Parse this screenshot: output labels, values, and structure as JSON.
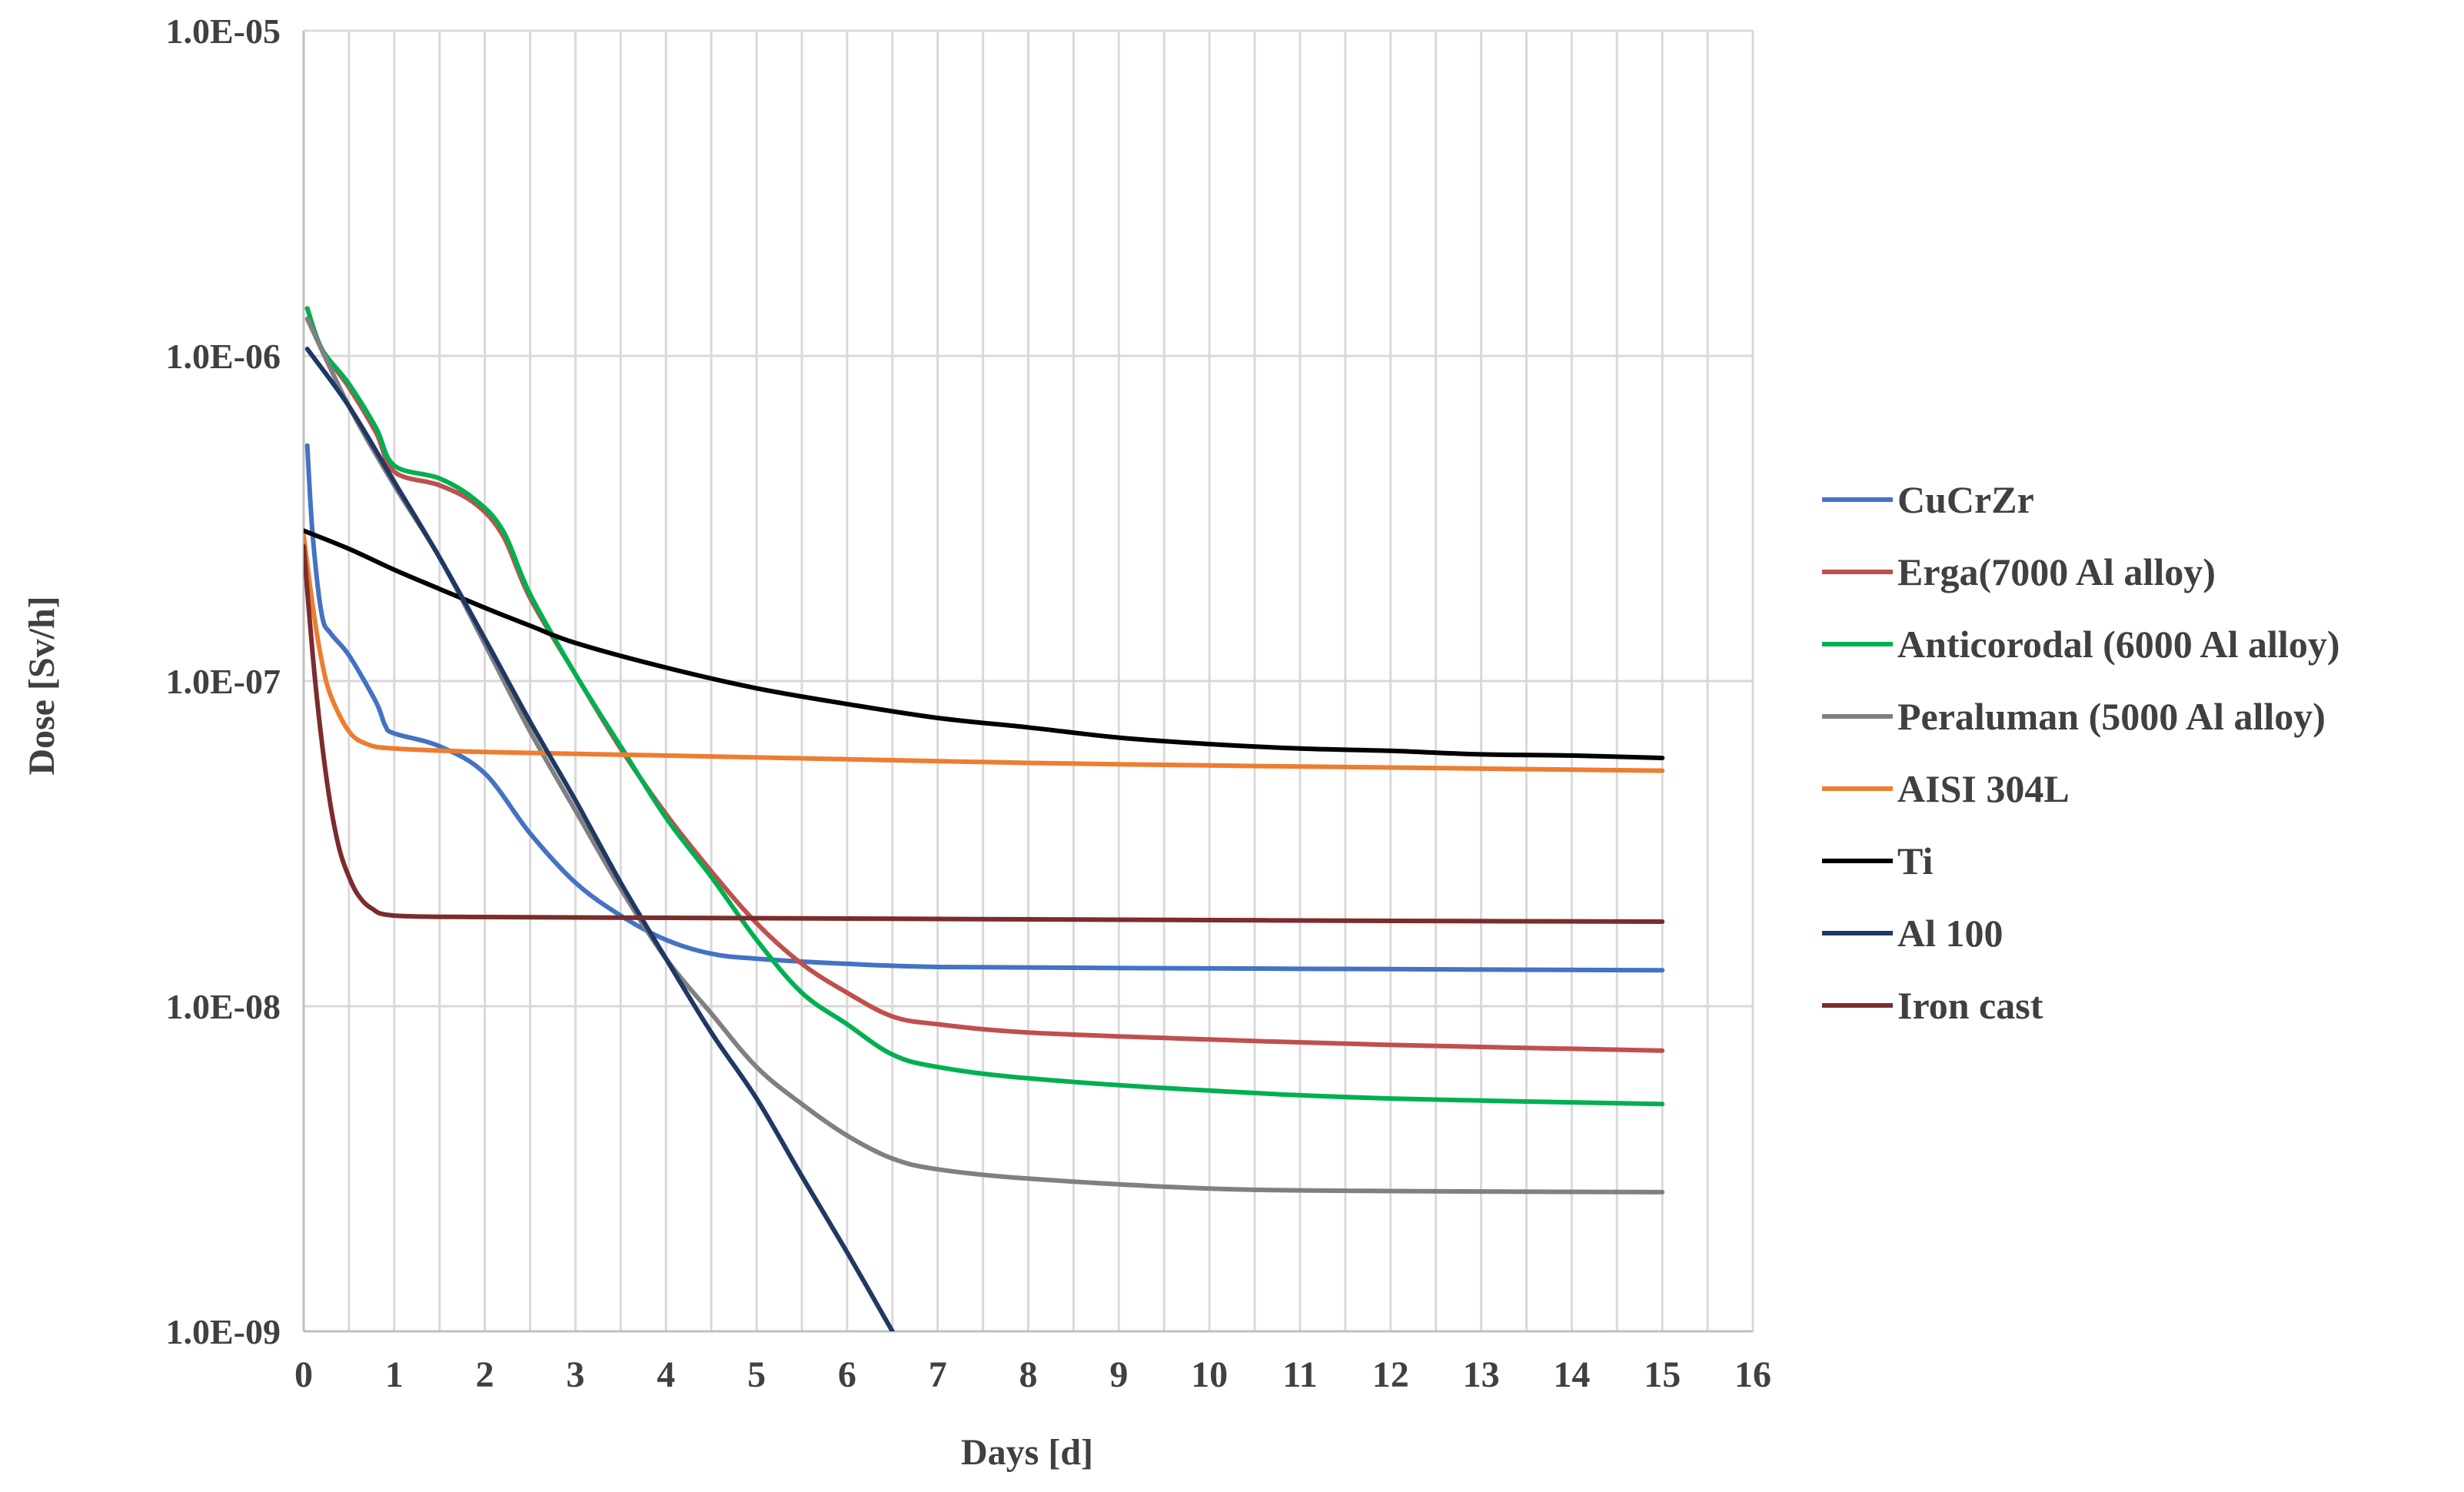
{
  "chart_data": {
    "type": "line",
    "title": "",
    "xlabel": "Days [d]",
    "ylabel": "Dose [Sv/h]",
    "xlim": [
      0,
      16
    ],
    "ylim": [
      1e-09,
      1e-05
    ],
    "yscale": "log",
    "grid": true,
    "legend_position": "right",
    "x_ticks": [
      "0",
      "1",
      "2",
      "3",
      "4",
      "5",
      "6",
      "7",
      "8",
      "9",
      "10",
      "11",
      "12",
      "13",
      "14",
      "15",
      "16"
    ],
    "y_ticks": [
      "1.0E-09",
      "1.0E-08",
      "1.0E-07",
      "1.0E-06",
      "1.0E-05"
    ],
    "series": [
      {
        "name": "CuCrZr",
        "color": "#4472C4",
        "points": [
          [
            0.04,
            5.3e-07
          ],
          [
            0.1,
            2.8e-07
          ],
          [
            0.2,
            1.6e-07
          ],
          [
            0.3,
            1.4e-07
          ],
          [
            0.5,
            1.2e-07
          ],
          [
            0.8,
            8.6e-08
          ],
          [
            0.9,
            7.3e-08
          ],
          [
            1,
            6.9e-08
          ],
          [
            1.5,
            6.3e-08
          ],
          [
            2,
            5.2e-08
          ],
          [
            2.5,
            3.4e-08
          ],
          [
            3,
            2.4e-08
          ],
          [
            3.5,
            1.9e-08
          ],
          [
            4,
            1.6e-08
          ],
          [
            4.5,
            1.45e-08
          ],
          [
            5,
            1.4e-08
          ],
          [
            6,
            1.35e-08
          ],
          [
            7,
            1.32e-08
          ],
          [
            9,
            1.31e-08
          ],
          [
            12,
            1.3e-08
          ],
          [
            15,
            1.29e-08
          ]
        ]
      },
      {
        "name": "Erga(7000 Al alloy)",
        "color": "#C0504D",
        "points": [
          [
            0.04,
            1.4e-06
          ],
          [
            0.2,
            1.05e-06
          ],
          [
            0.5,
            8e-07
          ],
          [
            0.8,
            5.8e-07
          ],
          [
            1,
            4.4e-07
          ],
          [
            1.5,
            4e-07
          ],
          [
            1.9,
            3.5e-07
          ],
          [
            2.2,
            2.8e-07
          ],
          [
            2.5,
            1.8e-07
          ],
          [
            3,
            1.05e-07
          ],
          [
            3.5,
            6.2e-08
          ],
          [
            4,
            3.9e-08
          ],
          [
            4.5,
            2.6e-08
          ],
          [
            5,
            1.8e-08
          ],
          [
            5.5,
            1.35e-08
          ],
          [
            6,
            1.1e-08
          ],
          [
            6.5,
            9.3e-09
          ],
          [
            7,
            8.8e-09
          ],
          [
            8,
            8.3e-09
          ],
          [
            10,
            7.9e-09
          ],
          [
            12,
            7.6e-09
          ],
          [
            15,
            7.3e-09
          ]
        ]
      },
      {
        "name": "Anticorodal (6000 Al alloy)",
        "color": "#00B050",
        "points": [
          [
            0.04,
            1.4e-06
          ],
          [
            0.2,
            1.05e-06
          ],
          [
            0.5,
            8.2e-07
          ],
          [
            0.8,
            6e-07
          ],
          [
            1,
            4.6e-07
          ],
          [
            1.5,
            4.2e-07
          ],
          [
            1.9,
            3.6e-07
          ],
          [
            2.2,
            2.9e-07
          ],
          [
            2.5,
            1.85e-07
          ],
          [
            3,
            1.05e-07
          ],
          [
            3.5,
            6.3e-08
          ],
          [
            4,
            3.8e-08
          ],
          [
            4.5,
            2.5e-08
          ],
          [
            5,
            1.6e-08
          ],
          [
            5.5,
            1.1e-08
          ],
          [
            6,
            8.8e-09
          ],
          [
            6.5,
            7.1e-09
          ],
          [
            7,
            6.5e-09
          ],
          [
            8,
            6e-09
          ],
          [
            10,
            5.5e-09
          ],
          [
            12,
            5.2e-09
          ],
          [
            15,
            5e-09
          ]
        ]
      },
      {
        "name": "Peraluman (5000 Al alloy)",
        "color": "#808080",
        "points": [
          [
            0.04,
            1.3e-06
          ],
          [
            0.5,
            7e-07
          ],
          [
            1,
            4e-07
          ],
          [
            1.5,
            2.4e-07
          ],
          [
            2,
            1.3e-07
          ],
          [
            2.5,
            7e-08
          ],
          [
            3,
            4e-08
          ],
          [
            3.5,
            2.3e-08
          ],
          [
            4,
            1.4e-08
          ],
          [
            4.5,
            9.5e-09
          ],
          [
            5,
            6.5e-09
          ],
          [
            5.5,
            5e-09
          ],
          [
            6,
            4e-09
          ],
          [
            6.5,
            3.4e-09
          ],
          [
            7,
            3.15e-09
          ],
          [
            8,
            2.95e-09
          ],
          [
            10,
            2.75e-09
          ],
          [
            12,
            2.7e-09
          ],
          [
            15,
            2.68e-09
          ]
        ]
      },
      {
        "name": "AISI 304L",
        "color": "#ED7D31",
        "points": [
          [
            0,
            2.8e-07
          ],
          [
            0.1,
            1.7e-07
          ],
          [
            0.2,
            1.15e-07
          ],
          [
            0.3,
            9e-08
          ],
          [
            0.5,
            7e-08
          ],
          [
            0.7,
            6.4e-08
          ],
          [
            1,
            6.2e-08
          ],
          [
            2,
            6.05e-08
          ],
          [
            4,
            5.9e-08
          ],
          [
            6,
            5.75e-08
          ],
          [
            8,
            5.6e-08
          ],
          [
            10,
            5.5e-08
          ],
          [
            12,
            5.42e-08
          ],
          [
            15,
            5.3e-08
          ]
        ]
      },
      {
        "name": "Ti",
        "color": "#000000",
        "points": [
          [
            0,
            2.9e-07
          ],
          [
            0.5,
            2.55e-07
          ],
          [
            1,
            2.2e-07
          ],
          [
            1.5,
            1.92e-07
          ],
          [
            2,
            1.68e-07
          ],
          [
            2.5,
            1.48e-07
          ],
          [
            3,
            1.31e-07
          ],
          [
            4,
            1.1e-07
          ],
          [
            5,
            9.5e-08
          ],
          [
            6,
            8.5e-08
          ],
          [
            7,
            7.7e-08
          ],
          [
            8,
            7.2e-08
          ],
          [
            9,
            6.7e-08
          ],
          [
            10,
            6.4e-08
          ],
          [
            11,
            6.2e-08
          ],
          [
            12,
            6.1e-08
          ],
          [
            13,
            5.95e-08
          ],
          [
            14,
            5.9e-08
          ],
          [
            15,
            5.8e-08
          ]
        ]
      },
      {
        "name": "Al 100",
        "color": "#1F3864",
        "points": [
          [
            0.04,
            1.05e-06
          ],
          [
            0.5,
            7e-07
          ],
          [
            1,
            4.1e-07
          ],
          [
            1.5,
            2.4e-07
          ],
          [
            2,
            1.35e-07
          ],
          [
            2.5,
            7.5e-08
          ],
          [
            3,
            4.3e-08
          ],
          [
            3.5,
            2.4e-08
          ],
          [
            4,
            1.4e-08
          ],
          [
            4.5,
            8.3e-09
          ],
          [
            5,
            5.2e-09
          ],
          [
            5.5,
            3e-09
          ],
          [
            6,
            1.75e-09
          ],
          [
            6.5,
            1e-09
          ]
        ]
      },
      {
        "name": "Iron cast",
        "color": "#7B2C2C",
        "points": [
          [
            0,
            2.6e-07
          ],
          [
            0.1,
            1.2e-07
          ],
          [
            0.2,
            6.5e-08
          ],
          [
            0.3,
            4.1e-08
          ],
          [
            0.4,
            3e-08
          ],
          [
            0.5,
            2.5e-08
          ],
          [
            0.6,
            2.2e-08
          ],
          [
            0.75,
            2e-08
          ],
          [
            1,
            1.9e-08
          ],
          [
            2,
            1.88e-08
          ],
          [
            4,
            1.87e-08
          ],
          [
            6,
            1.86e-08
          ],
          [
            8,
            1.85e-08
          ],
          [
            10,
            1.84e-08
          ],
          [
            12,
            1.83e-08
          ],
          [
            15,
            1.82e-08
          ]
        ]
      }
    ]
  }
}
